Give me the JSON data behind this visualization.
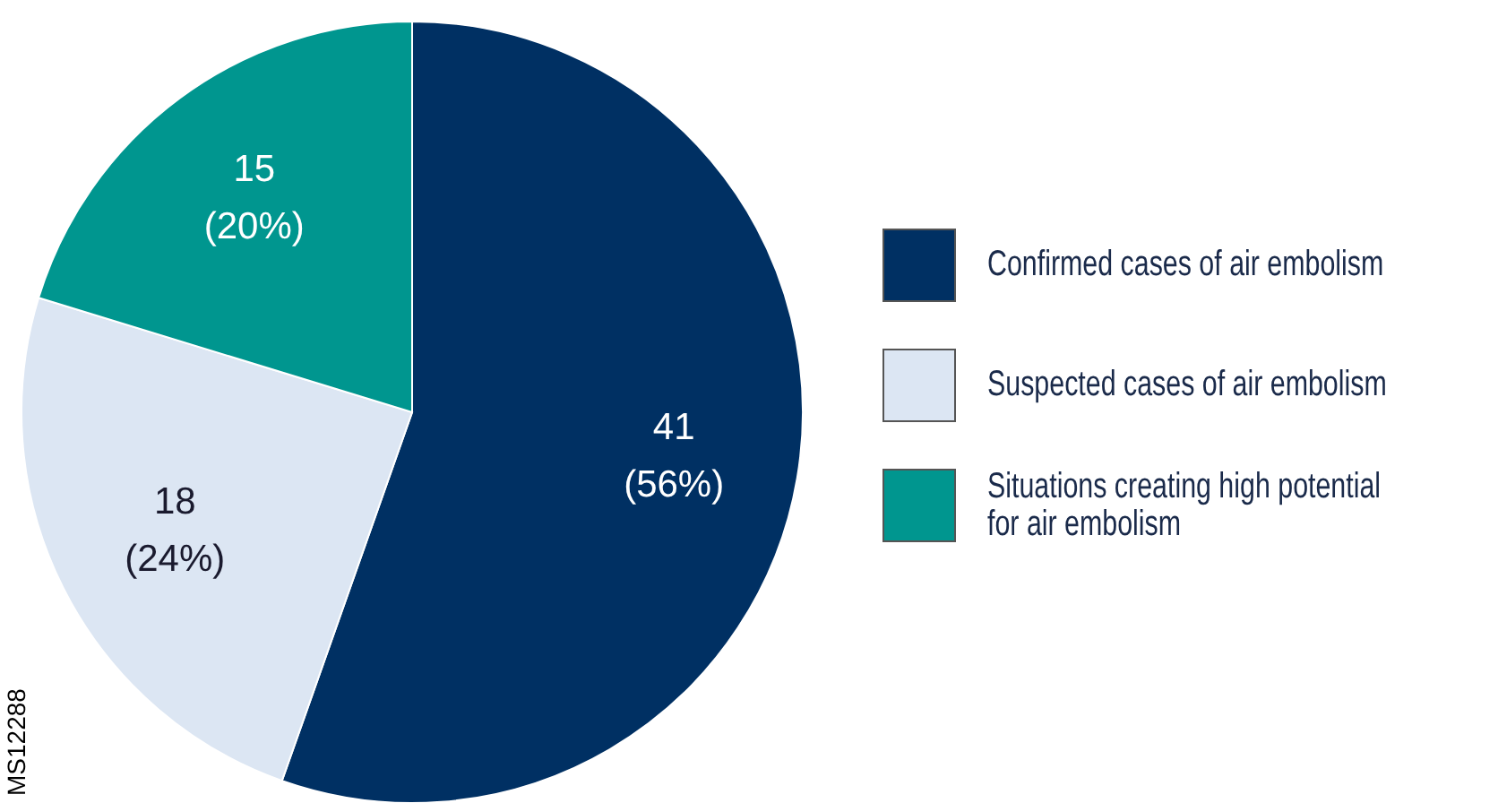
{
  "chart_data": {
    "type": "pie",
    "categories": [
      "Confirmed cases of air embolism",
      "Suspected cases of air embolism",
      "Situations creating high potential for air embolism"
    ],
    "values": [
      41,
      18,
      15
    ],
    "colors": [
      "#003063",
      "#dce6f3",
      "#00968f"
    ],
    "value_labels": [
      "41\n(56%)",
      "18\n(24%)",
      "15\n(20%)"
    ],
    "legend": "right",
    "annotations": [
      "MS12288"
    ]
  }
}
